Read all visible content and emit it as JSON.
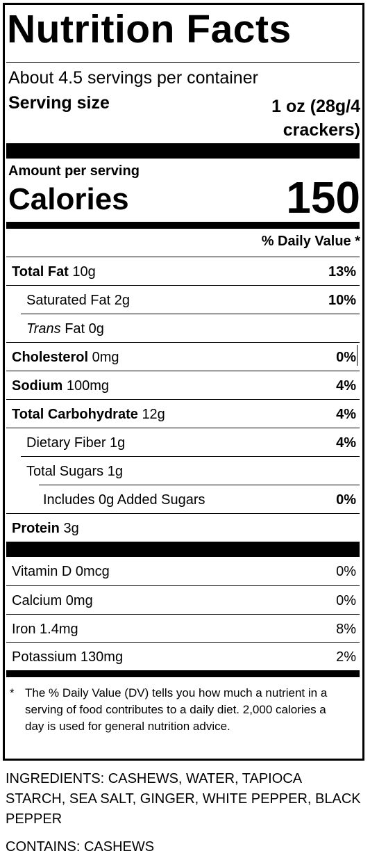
{
  "title": "Nutrition Facts",
  "servings_per_container": "About 4.5 servings per container",
  "serving_size": {
    "label": "Serving size",
    "value_line1": "1 oz (28g/4",
    "value_line2": "crackers)"
  },
  "amount_per_serving": "Amount per serving",
  "calories": {
    "label": "Calories",
    "value": "150"
  },
  "daily_value_header": "% Daily Value *",
  "nutrients": [
    {
      "name": "Total Fat",
      "amount": "10g",
      "dv": "13%"
    },
    {
      "name": "Saturated Fat",
      "amount": "2g",
      "dv": "10%"
    },
    {
      "name": "Trans",
      "name_suffix": "Fat",
      "amount": "0g",
      "dv": ""
    },
    {
      "name": "Cholesterol",
      "amount": "0mg",
      "dv": "0%"
    },
    {
      "name": "Sodium",
      "amount": "100mg",
      "dv": "4%"
    },
    {
      "name": "Total Carbohydrate",
      "amount": "12g",
      "dv": "4%"
    },
    {
      "name": "Dietary Fiber",
      "amount": "1g",
      "dv": "4%"
    },
    {
      "name": "Total Sugars",
      "amount": "1g",
      "dv": ""
    },
    {
      "name": "Includes 0g Added Sugars",
      "amount": "",
      "dv": "0%"
    },
    {
      "name": "Protein",
      "amount": "3g",
      "dv": ""
    }
  ],
  "micronutrients": [
    {
      "name": "Vitamin D 0mcg",
      "dv": "0%"
    },
    {
      "name": "Calcium 0mg",
      "dv": "0%"
    },
    {
      "name": "Iron 1.4mg",
      "dv": "8%"
    },
    {
      "name": "Potassium 130mg",
      "dv": "2%"
    }
  ],
  "footnote": {
    "star": "*",
    "text": "The % Daily Value (DV) tells you how much a nutrient in a serving of food contributes to a daily diet. 2,000 calories a day is used for general nutrition advice."
  },
  "ingredients": "INGREDIENTS: CASHEWS, WATER, TAPIOCA STARCH, SEA SALT, GINGER, WHITE PEPPER, BLACK PEPPER",
  "contains": "CONTAINS: CASHEWS"
}
